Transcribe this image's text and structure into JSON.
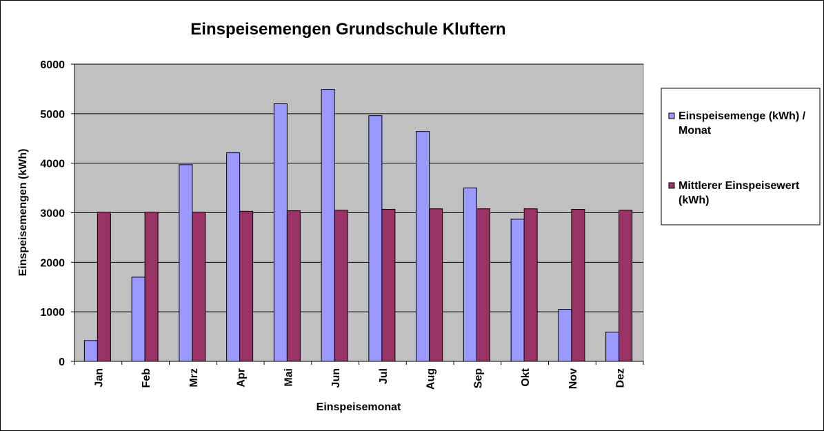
{
  "chart_data": {
    "type": "bar",
    "title": "Einspeisemengen Grundschule Kluftern",
    "xlabel": "Einspeisemonat",
    "ylabel": "Einspeisemengen (kWh)",
    "ylim": [
      0,
      6000
    ],
    "yticks": [
      "0",
      "1000",
      "2000",
      "3000",
      "4000",
      "5000",
      "6000"
    ],
    "grid": true,
    "legend_position": "right",
    "categories": [
      "Jan",
      "Feb",
      "Mrz",
      "Apr",
      "Mai",
      "Jun",
      "Jul",
      "Aug",
      "Sep",
      "Okt",
      "Nov",
      "Dez"
    ],
    "series": [
      {
        "name": "Einspeisemenge (kWh) / Monat",
        "legend_lines": [
          "Einspeisemenge (kWh) /",
          "Monat"
        ],
        "color": "#9999FF",
        "values": [
          420,
          1700,
          3970,
          4210,
          5200,
          5490,
          4960,
          4640,
          3500,
          2870,
          1050,
          590
        ]
      },
      {
        "name": "Mittlerer Einspeisewert (kWh)",
        "legend_lines": [
          "Mittlerer Einspeisewert",
          "(kWh)"
        ],
        "color": "#993366",
        "values": [
          3010,
          3010,
          3010,
          3030,
          3040,
          3050,
          3070,
          3080,
          3080,
          3080,
          3070,
          3050
        ]
      }
    ],
    "plot_background": "#C0C0C0"
  }
}
